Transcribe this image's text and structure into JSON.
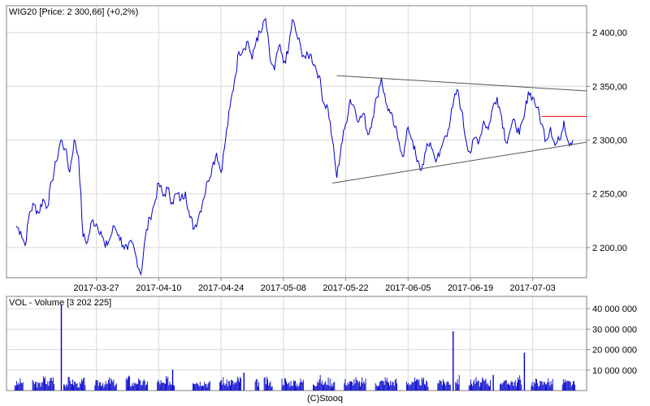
{
  "footer": "(C)Stooq",
  "colors": {
    "price_line": "#0000cc",
    "volume_bar": "#0000cc",
    "trend_line": "#555555",
    "resistance_line": "#dd0000",
    "grid": "#d8d8d8",
    "frame": "#808080"
  },
  "chart_data": [
    {
      "type": "line",
      "title": "WIG20 [Price: 2 300,66] (+0,2%)",
      "xlabel": "",
      "ylabel": "",
      "x_tick_labels": [
        "2017-03-27",
        "2017-04-10",
        "2017-04-24",
        "2017-05-08",
        "2017-05-22",
        "2017-06-05",
        "2017-06-19",
        "2017-07-03"
      ],
      "y_tick_labels": [
        "2 400,00",
        "2 350,00",
        "2 300,00",
        "2 250,00",
        "2 200,00"
      ],
      "y_ticks": [
        2400,
        2350,
        2300,
        2250,
        2200
      ],
      "ylim": [
        2172,
        2425
      ],
      "x_range": [
        "2017-03-09",
        "2017-07-12"
      ],
      "grid": true,
      "series": [
        {
          "name": "WIG20",
          "points": [
            [
              "2017-03-09",
              2220
            ],
            [
              "2017-03-10",
              2215
            ],
            [
              "2017-03-11",
              2202
            ],
            [
              "2017-03-12",
              2233
            ],
            [
              "2017-03-13",
              2240
            ],
            [
              "2017-03-14",
              2232
            ],
            [
              "2017-03-15",
              2245
            ],
            [
              "2017-03-16",
              2238
            ],
            [
              "2017-03-17",
              2262
            ],
            [
              "2017-03-18",
              2280
            ],
            [
              "2017-03-19",
              2300
            ],
            [
              "2017-03-20",
              2292
            ],
            [
              "2017-03-21",
              2270
            ],
            [
              "2017-03-22",
              2300
            ],
            [
              "2017-03-23",
              2285
            ],
            [
              "2017-03-24",
              2210
            ],
            [
              "2017-03-25",
              2205
            ],
            [
              "2017-03-26",
              2225
            ],
            [
              "2017-03-27",
              2222
            ],
            [
              "2017-03-28",
              2215
            ],
            [
              "2017-03-29",
              2200
            ],
            [
              "2017-03-30",
              2208
            ],
            [
              "2017-03-31",
              2220
            ],
            [
              "2017-04-01",
              2212
            ],
            [
              "2017-04-02",
              2202
            ],
            [
              "2017-04-03",
              2198
            ],
            [
              "2017-04-04",
              2205
            ],
            [
              "2017-04-05",
              2190
            ],
            [
              "2017-04-06",
              2175
            ],
            [
              "2017-04-07",
              2210
            ],
            [
              "2017-04-08",
              2228
            ],
            [
              "2017-04-09",
              2240
            ],
            [
              "2017-04-10",
              2260
            ],
            [
              "2017-04-11",
              2248
            ],
            [
              "2017-04-12",
              2255
            ],
            [
              "2017-04-13",
              2242
            ],
            [
              "2017-04-14",
              2250
            ],
            [
              "2017-04-15",
              2245
            ],
            [
              "2017-04-16",
              2252
            ],
            [
              "2017-04-17",
              2228
            ],
            [
              "2017-04-18",
              2218
            ],
            [
              "2017-04-19",
              2230
            ],
            [
              "2017-04-20",
              2245
            ],
            [
              "2017-04-21",
              2262
            ],
            [
              "2017-04-22",
              2275
            ],
            [
              "2017-04-23",
              2288
            ],
            [
              "2017-04-24",
              2270
            ],
            [
              "2017-04-25",
              2300
            ],
            [
              "2017-04-26",
              2330
            ],
            [
              "2017-04-27",
              2355
            ],
            [
              "2017-04-28",
              2382
            ],
            [
              "2017-04-29",
              2385
            ],
            [
              "2017-04-30",
              2392
            ],
            [
              "2017-05-01",
              2375
            ],
            [
              "2017-05-02",
              2395
            ],
            [
              "2017-05-03",
              2400
            ],
            [
              "2017-05-04",
              2413
            ],
            [
              "2017-05-05",
              2375
            ],
            [
              "2017-05-06",
              2365
            ],
            [
              "2017-05-07",
              2388
            ],
            [
              "2017-05-08",
              2372
            ],
            [
              "2017-05-09",
              2380
            ],
            [
              "2017-05-10",
              2412
            ],
            [
              "2017-05-11",
              2398
            ],
            [
              "2017-05-12",
              2384
            ],
            [
              "2017-05-13",
              2376
            ],
            [
              "2017-05-14",
              2380
            ],
            [
              "2017-05-15",
              2370
            ],
            [
              "2017-05-16",
              2360
            ],
            [
              "2017-05-17",
              2335
            ],
            [
              "2017-05-18",
              2330
            ],
            [
              "2017-05-19",
              2300
            ],
            [
              "2017-05-20",
              2265
            ],
            [
              "2017-05-21",
              2295
            ],
            [
              "2017-05-22",
              2315
            ],
            [
              "2017-05-23",
              2338
            ],
            [
              "2017-05-24",
              2330
            ],
            [
              "2017-05-25",
              2318
            ],
            [
              "2017-05-26",
              2325
            ],
            [
              "2017-05-27",
              2305
            ],
            [
              "2017-05-28",
              2320
            ],
            [
              "2017-05-29",
              2340
            ],
            [
              "2017-05-30",
              2358
            ],
            [
              "2017-05-31",
              2335
            ],
            [
              "2017-06-01",
              2325
            ],
            [
              "2017-06-02",
              2312
            ],
            [
              "2017-06-03",
              2298
            ],
            [
              "2017-06-04",
              2285
            ],
            [
              "2017-06-05",
              2312
            ],
            [
              "2017-06-06",
              2300
            ],
            [
              "2017-06-07",
              2280
            ],
            [
              "2017-06-08",
              2272
            ],
            [
              "2017-06-09",
              2290
            ],
            [
              "2017-06-10",
              2298
            ],
            [
              "2017-06-11",
              2283
            ],
            [
              "2017-06-12",
              2285
            ],
            [
              "2017-06-13",
              2300
            ],
            [
              "2017-06-14",
              2310
            ],
            [
              "2017-06-15",
              2330
            ],
            [
              "2017-06-16",
              2347
            ],
            [
              "2017-06-17",
              2328
            ],
            [
              "2017-06-18",
              2300
            ],
            [
              "2017-06-19",
              2288
            ],
            [
              "2017-06-20",
              2302
            ],
            [
              "2017-06-21",
              2300
            ],
            [
              "2017-06-22",
              2318
            ],
            [
              "2017-06-23",
              2310
            ],
            [
              "2017-06-24",
              2330
            ],
            [
              "2017-06-25",
              2340
            ],
            [
              "2017-06-26",
              2322
            ],
            [
              "2017-06-27",
              2298
            ],
            [
              "2017-06-28",
              2310
            ],
            [
              "2017-06-29",
              2318
            ],
            [
              "2017-06-30",
              2305
            ],
            [
              "2017-07-01",
              2320
            ],
            [
              "2017-07-02",
              2345
            ],
            [
              "2017-07-03",
              2340
            ],
            [
              "2017-07-04",
              2330
            ],
            [
              "2017-07-05",
              2315
            ],
            [
              "2017-07-06",
              2300
            ],
            [
              "2017-07-07",
              2312
            ],
            [
              "2017-07-08",
              2295
            ],
            [
              "2017-07-09",
              2300
            ],
            [
              "2017-07-10",
              2318
            ],
            [
              "2017-07-11",
              2298
            ],
            [
              "2017-07-12",
              2300
            ]
          ]
        }
      ],
      "annotations": [
        {
          "kind": "trend_line",
          "from": [
            "2017-05-20",
            2360
          ],
          "to": [
            "2017-07-18",
            2345
          ]
        },
        {
          "kind": "trend_line",
          "from": [
            "2017-05-19",
            2260
          ],
          "to": [
            "2017-07-18",
            2300
          ]
        },
        {
          "kind": "horizontal_line",
          "from": [
            "2017-07-05",
            2322
          ],
          "to": [
            "2017-07-18",
            2322
          ]
        }
      ]
    },
    {
      "type": "bar",
      "title": "VOL - Volume [3 202 225]",
      "xlabel": "",
      "ylabel": "",
      "y_tick_labels": [
        "40 000 000",
        "30 000 000",
        "20 000 000",
        "10 000 000"
      ],
      "y_ticks": [
        40000000,
        30000000,
        20000000,
        10000000
      ],
      "ylim": [
        0,
        46000000
      ],
      "grid": true,
      "series": [
        {
          "name": "Volume",
          "points": [
            [
              "2017-03-09",
              3200000
            ],
            [
              "2017-03-10",
              4100000
            ],
            [
              "2017-03-13",
              3600000
            ],
            [
              "2017-03-14",
              2900000
            ],
            [
              "2017-03-15",
              5200000
            ],
            [
              "2017-03-16",
              3800000
            ],
            [
              "2017-03-17",
              6100000
            ],
            [
              "2017-03-20",
              3400000
            ],
            [
              "2017-03-21",
              4700000
            ],
            [
              "2017-03-22",
              3900000
            ],
            [
              "2017-03-23",
              2800000
            ],
            [
              "2017-03-24",
              4300000
            ],
            [
              "2017-03-27",
              3500000
            ],
            [
              "2017-03-28",
              4000000
            ],
            [
              "2017-03-29",
              3100000
            ],
            [
              "2017-03-30",
              4600000
            ],
            [
              "2017-03-31",
              3700000
            ],
            [
              "2017-04-03",
              5200000
            ],
            [
              "2017-04-04",
              3300000
            ],
            [
              "2017-04-05",
              4400000
            ],
            [
              "2017-04-06",
              3600000
            ],
            [
              "2017-04-07",
              3900000
            ],
            [
              "2017-04-10",
              4100000
            ],
            [
              "2017-04-11",
              3200000
            ],
            [
              "2017-04-12",
              4800000
            ],
            [
              "2017-04-13",
              3500000
            ],
            [
              "2017-04-18",
              5400000
            ],
            [
              "2017-04-19",
              3800000
            ],
            [
              "2017-04-20",
              4200000
            ],
            [
              "2017-04-21",
              3300000
            ],
            [
              "2017-04-24",
              4900000
            ],
            [
              "2017-04-25",
              3600000
            ],
            [
              "2017-04-26",
              4300000
            ],
            [
              "2017-04-27",
              3700000
            ],
            [
              "2017-04-28",
              5100000
            ],
            [
              "2017-05-02",
              3900000
            ],
            [
              "2017-05-04",
              4500000
            ],
            [
              "2017-05-05",
              3400000
            ],
            [
              "2017-05-08",
              4700000
            ],
            [
              "2017-05-09",
              3600000
            ],
            [
              "2017-05-10",
              4100000
            ],
            [
              "2017-05-11",
              3300000
            ],
            [
              "2017-05-12",
              4400000
            ],
            [
              "2017-05-15",
              3800000
            ],
            [
              "2017-05-16",
              5300000
            ],
            [
              "2017-05-17",
              3500000
            ],
            [
              "2017-05-18",
              4600000
            ],
            [
              "2017-05-19",
              3900000
            ],
            [
              "2017-05-22",
              4200000
            ],
            [
              "2017-05-23",
              3700000
            ],
            [
              "2017-05-24",
              4800000
            ],
            [
              "2017-05-25",
              3400000
            ],
            [
              "2017-05-26",
              4500000
            ],
            [
              "2017-05-29",
              3600000
            ],
            [
              "2017-05-30",
              4100000
            ],
            [
              "2017-05-31",
              5000000
            ],
            [
              "2017-06-01",
              3800000
            ],
            [
              "2017-06-02",
              4300000
            ],
            [
              "2017-06-05",
              3500000
            ],
            [
              "2017-06-06",
              4700000
            ],
            [
              "2017-06-07",
              3900000
            ],
            [
              "2017-06-08",
              4400000
            ],
            [
              "2017-06-09",
              3600000
            ],
            [
              "2017-06-12",
              4900000
            ],
            [
              "2017-06-13",
              3700000
            ],
            [
              "2017-06-14",
              4200000
            ],
            [
              "2017-06-16",
              5200000
            ],
            [
              "2017-06-19",
              3800000
            ],
            [
              "2017-06-20",
              4600000
            ],
            [
              "2017-06-21",
              3500000
            ],
            [
              "2017-06-22",
              4300000
            ],
            [
              "2017-06-23",
              3900000
            ],
            [
              "2017-06-26",
              4700000
            ],
            [
              "2017-06-27",
              3600000
            ],
            [
              "2017-06-28",
              4400000
            ],
            [
              "2017-06-29",
              3800000
            ],
            [
              "2017-06-30",
              5100000
            ],
            [
              "2017-07-03",
              3700000
            ],
            [
              "2017-07-04",
              4200000
            ],
            [
              "2017-07-05",
              3500000
            ],
            [
              "2017-07-06",
              4600000
            ],
            [
              "2017-07-07",
              3900000
            ],
            [
              "2017-07-10",
              4300000
            ],
            [
              "2017-07-11",
              3600000
            ],
            [
              "2017-07-12",
              3202225
            ]
          ]
        }
      ],
      "spikes": [
        [
          "2017-03-19",
          42000000
        ],
        [
          "2017-04-13",
          10200000
        ],
        [
          "2017-04-29",
          8800000
        ],
        [
          "2017-06-15",
          29000000
        ],
        [
          "2017-06-24",
          7600000
        ],
        [
          "2017-07-01",
          18500000
        ]
      ]
    }
  ]
}
